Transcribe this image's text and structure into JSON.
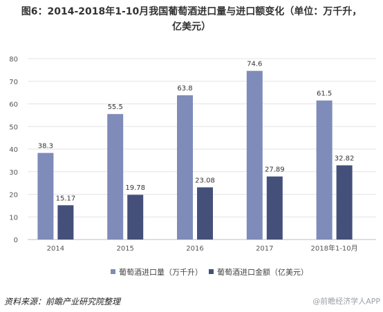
{
  "title_line1": "图6：2014-2018年1-10月我国葡萄酒进口量与进口额变化（单位：万千升，",
  "title_line2": "亿美元）",
  "source": "资料来源：前瞻产业研究院整理",
  "watermark": "@前瞻经济学人APP",
  "colors": {
    "series1": "#7f8bb8",
    "series2": "#44507a",
    "grid": "#e3e3e3",
    "axis": "#bfbfbf"
  },
  "chart_data": {
    "type": "bar",
    "categories": [
      "2014",
      "2015",
      "2016",
      "2017",
      "2018年1-10月"
    ],
    "series": [
      {
        "name": "葡萄酒进口量（万千升）",
        "values": [
          38.3,
          55.5,
          63.8,
          74.6,
          61.5
        ],
        "labels": [
          "38.3",
          "55.5",
          "63.8",
          "74.6",
          "61.5"
        ]
      },
      {
        "name": "葡萄酒进口金额（亿美元）",
        "values": [
          15.17,
          19.78,
          23.08,
          27.89,
          32.82
        ],
        "labels": [
          "15.17",
          "19.78",
          "23.08",
          "27.89",
          "32.82"
        ]
      }
    ],
    "ylim": [
      0,
      80
    ],
    "yticks": [
      0,
      10,
      20,
      30,
      40,
      50,
      60,
      70,
      80
    ],
    "grid": true,
    "legend": "bottom"
  }
}
